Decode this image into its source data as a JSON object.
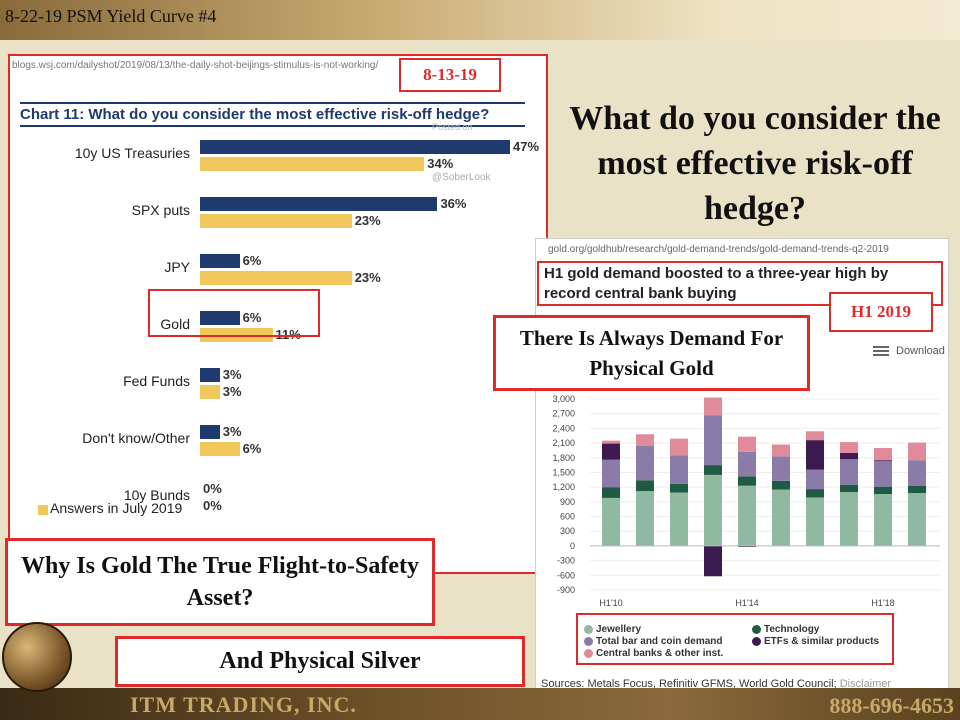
{
  "slide": {
    "title": "8-22-19 PSM Yield Curve #4",
    "company": "ITM TRADING, INC.",
    "phone": "888-696-4653",
    "question": "What do you consider the most effective risk-off hedge?"
  },
  "left_panel": {
    "url": "blogs.wsj.com/dailyshot/2019/08/13/the-daily-shot-beijings-stimulus-is-not-working/",
    "date_badge": "8-13-19",
    "posted_on": "Posted on",
    "handle": "@SoberLook"
  },
  "right_panel": {
    "url": "gold.org/goldhub/research/gold-demand-trends/gold-demand-trends-q2-2019",
    "headline": "H1 gold demand boosted to a three-year high by record central bank buying",
    "badge": "H1 2019",
    "download": "Download",
    "sources": "Sources: Metals Focus, Refinitiv GFMS, World Gold Council;",
    "disclaimer": "Disclaimer"
  },
  "callouts": {
    "demand": "There Is Always Demand For Physical Gold",
    "why": "Why Is Gold The True Flight-to-Safety Asset?",
    "silver": "And Physical Silver"
  },
  "colors": {
    "navy": "#1f3a6e",
    "gold": "#f0c75a",
    "accent_red": "#e02a2a",
    "jewellery": "#8fb9a0",
    "technology": "#1f5a44",
    "bar_coin": "#8a7ba8",
    "etf": "#3d1a4f",
    "central_banks": "#e08a9a"
  },
  "chart_data": [
    {
      "type": "bar",
      "orientation": "horizontal",
      "title": "Chart 11: What do you consider the most effective risk-off hedge?",
      "categories": [
        "10y US Treasuries",
        "SPX puts",
        "JPY",
        "Gold",
        "Fed Funds",
        "Don't know/Other",
        "10y Bunds"
      ],
      "series": [
        {
          "values": [
            47,
            36,
            6,
            6,
            3,
            3,
            0
          ]
        },
        {
          "name": "Answers in July 2019",
          "values": [
            34,
            23,
            23,
            11,
            3,
            6,
            0
          ]
        }
      ],
      "unit": "%",
      "legend": "bottom-left"
    },
    {
      "type": "bar",
      "stacked": true,
      "x_tick_labels": [
        "H1'10",
        "H1'14",
        "H1'18"
      ],
      "periods": 10,
      "yticks": [
        3000,
        2700,
        2400,
        2100,
        1800,
        1500,
        1200,
        900,
        600,
        300,
        0,
        -300,
        -600,
        -900
      ],
      "ylim": [
        -900,
        3000
      ],
      "series": [
        {
          "name": "Jewellery",
          "values": [
            980,
            1120,
            1090,
            1450,
            1230,
            1150,
            990,
            1100,
            1060,
            1080
          ]
        },
        {
          "name": "Technology",
          "values": [
            220,
            220,
            180,
            200,
            190,
            180,
            170,
            150,
            150,
            150
          ]
        },
        {
          "name": "Total bar and coin demand",
          "values": [
            560,
            700,
            580,
            1020,
            500,
            500,
            400,
            520,
            520,
            520
          ]
        },
        {
          "name": "ETFs & similar products",
          "values": [
            330,
            0,
            0,
            -620,
            -20,
            0,
            600,
            130,
            20,
            0
          ]
        },
        {
          "name": "Central banks & other inst.",
          "values": [
            60,
            240,
            340,
            360,
            310,
            240,
            180,
            220,
            250,
            360
          ]
        }
      ],
      "legend": "bottom"
    }
  ]
}
